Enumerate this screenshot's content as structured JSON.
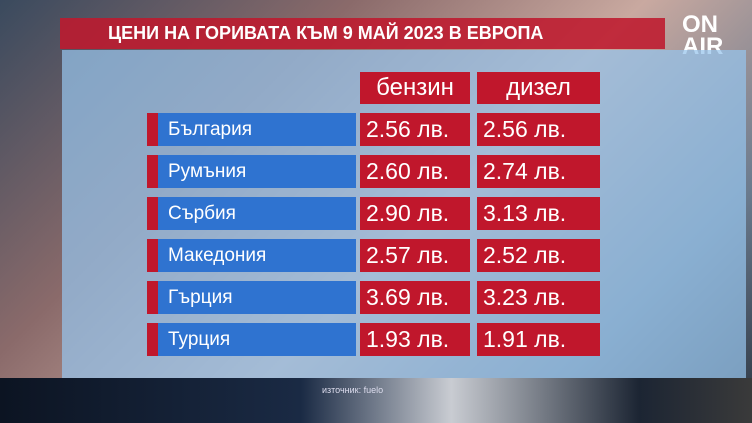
{
  "title": "ЦЕНИ НА ГОРИВАТА КЪМ 9 МАЙ 2023 В ЕВРОПА",
  "logo": {
    "line1": "ON",
    "line2": "AIR"
  },
  "columns": [
    "бензин",
    "дизел"
  ],
  "rows": [
    {
      "country": "България",
      "petrol": "2.56 лв.",
      "diesel": "2.56 лв."
    },
    {
      "country": "Румъния",
      "petrol": "2.60 лв.",
      "diesel": "2.74 лв."
    },
    {
      "country": "Сърбия",
      "petrol": "2.90 лв.",
      "diesel": "3.13 лв."
    },
    {
      "country": "Македония",
      "petrol": "2.57 лв.",
      "diesel": "2.52 лв."
    },
    {
      "country": "Гърция",
      "petrol": "3.69 лв.",
      "diesel": "3.23 лв."
    },
    {
      "country": "Турция",
      "petrol": "1.93 лв.",
      "diesel": "1.91 лв."
    }
  ],
  "source": "източник: fuelo",
  "colors": {
    "red": "#c0172c",
    "blue": "#2f73d0"
  }
}
